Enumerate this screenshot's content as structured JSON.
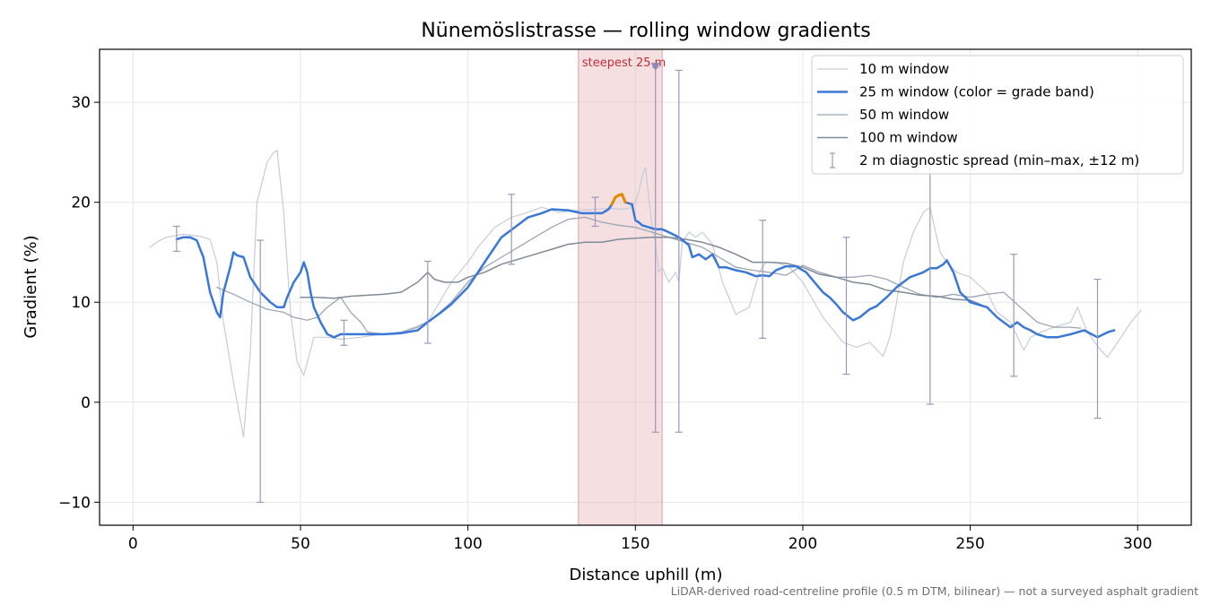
{
  "chart_data": {
    "type": "line",
    "title": "Nünemöslistrasse — rolling window gradients",
    "xlabel": "Distance uphill (m)",
    "ylabel": "Gradient (%)",
    "xlim": [
      -10,
      316
    ],
    "ylim": [
      -12.3,
      35.3
    ],
    "x_ticks": [
      0,
      50,
      100,
      150,
      200,
      250,
      300
    ],
    "y_ticks": [
      -10,
      0,
      10,
      20,
      30
    ],
    "x_tick_labels": [
      "0",
      "50",
      "100",
      "150",
      "200",
      "250",
      "300"
    ],
    "y_tick_labels": [
      "−10",
      "0",
      "10",
      "20",
      "30"
    ],
    "grid": true,
    "legend_position": "top-right",
    "footnote": "LiDAR-derived road-centreline profile (0.5 m DTM, bilinear) — not a surveyed asphalt gradient",
    "highlight": {
      "label": "steepest 25 m",
      "x_start": 133,
      "x_end": 158,
      "color": "#e8b8bd",
      "marker_x": 156,
      "marker_y": 33.5
    },
    "series": [
      {
        "name": "10 m window",
        "color": "#c7ccd6",
        "width": 1.2,
        "x": [
          5,
          7,
          10,
          15,
          20,
          23,
          25,
          27,
          30,
          33,
          35,
          37,
          40,
          42,
          43,
          45,
          47,
          49,
          51,
          54,
          58,
          62,
          68,
          72,
          80,
          88,
          95,
          100,
          103,
          108,
          113,
          118,
          122,
          127,
          133,
          138,
          143,
          146,
          148,
          150,
          151,
          152,
          153,
          154,
          155,
          156,
          157,
          158,
          160,
          162,
          163,
          164,
          166,
          168,
          170,
          173,
          176,
          180,
          184,
          187,
          189,
          192,
          196,
          200,
          206,
          212,
          216,
          220,
          224,
          226,
          228,
          230,
          233,
          236,
          238,
          239,
          241,
          243,
          246,
          250,
          255,
          258,
          262,
          266,
          268,
          271,
          275,
          280,
          282,
          285,
          289,
          291,
          295,
          298,
          301
        ],
        "y": [
          15.5,
          16,
          16.5,
          16.8,
          16.6,
          16.3,
          14,
          8,
          2,
          -3.5,
          5,
          20,
          24,
          25,
          25.2,
          19,
          9,
          4,
          2.7,
          6.5,
          6.5,
          6.3,
          6.5,
          6.7,
          7,
          8,
          12,
          14,
          15.5,
          17.5,
          18.5,
          19,
          19.5,
          19,
          19.2,
          19.3,
          19.4,
          19.3,
          19.4,
          20,
          21,
          22.5,
          23.5,
          20.5,
          17.5,
          16,
          13,
          13.5,
          12,
          13,
          12,
          16,
          17,
          16.5,
          17,
          15.8,
          12,
          8.8,
          9.5,
          13,
          14,
          14,
          13.5,
          12,
          8.5,
          6,
          5.5,
          6,
          4.6,
          6.5,
          10,
          14,
          17,
          19,
          19.5,
          18,
          15,
          14,
          13,
          12.5,
          11,
          9,
          8,
          5.2,
          6.5,
          7,
          7.5,
          8,
          9.5,
          7,
          5.2,
          4.5,
          6.5,
          8,
          9.2
        ]
      },
      {
        "name": "25 m window (color = grade band)",
        "color": "#3a78d8",
        "width": 2.5,
        "x": [
          13,
          15,
          17,
          19,
          21,
          23,
          25,
          26,
          27,
          29,
          30,
          31,
          33,
          35,
          38,
          41,
          43,
          45,
          46,
          48,
          50,
          51,
          52,
          53,
          54,
          56,
          58,
          60,
          62,
          65,
          70,
          75,
          80,
          85,
          88,
          92,
          95,
          100,
          103,
          106,
          110,
          114,
          118,
          122,
          125,
          130,
          134,
          138,
          140,
          142,
          143,
          144,
          145,
          146,
          147,
          148,
          149,
          150,
          151,
          152,
          154,
          156,
          158,
          160,
          163,
          166,
          167,
          169,
          171,
          173,
          175,
          177,
          180,
          183,
          186,
          188,
          190,
          192,
          195,
          198,
          201,
          204,
          206,
          208,
          210,
          212,
          215,
          217,
          220,
          222,
          225,
          228,
          232,
          236,
          238,
          240,
          242,
          243,
          245,
          247,
          250,
          255,
          258,
          260,
          262,
          264,
          266,
          268,
          270,
          273,
          276,
          280,
          284,
          288,
          291,
          293
        ],
        "y": [
          16.3,
          16.5,
          16.5,
          16.2,
          14.5,
          11,
          9,
          8.5,
          11,
          13.5,
          15,
          14.7,
          14.5,
          12.5,
          11,
          10,
          9.5,
          9.5,
          10.5,
          12,
          13,
          14,
          13,
          11,
          9.5,
          8,
          6.8,
          6.5,
          6.8,
          6.8,
          6.8,
          6.8,
          6.9,
          7.2,
          8,
          9,
          9.8,
          11.5,
          13,
          14.5,
          16.5,
          17.5,
          18.5,
          18.9,
          19.3,
          19.2,
          18.9,
          18.9,
          18.9,
          19.3,
          19.8,
          20.5,
          20.7,
          20.8,
          20,
          19.9,
          19.8,
          18.2,
          18,
          17.7,
          17.5,
          17.3,
          17.3,
          17,
          16.5,
          15.7,
          14.5,
          14.8,
          14.3,
          14.8,
          13.5,
          13.5,
          13.2,
          13,
          12.6,
          12.7,
          12.6,
          13.2,
          13.6,
          13.6,
          13,
          11.8,
          11,
          10.5,
          9.8,
          9,
          8.2,
          8.5,
          9.3,
          9.6,
          10.5,
          11.5,
          12.5,
          13,
          13.4,
          13.4,
          13.8,
          14.2,
          13,
          11,
          10,
          9.5,
          8.5,
          8,
          7.5,
          8,
          7.5,
          7.2,
          6.8,
          6.5,
          6.5,
          6.8,
          7.2,
          6.5,
          7,
          7.2
        ]
      },
      {
        "name": "50 m window",
        "color": "#9ca6b4",
        "width": 1.3,
        "x": [
          25,
          30,
          35,
          40,
          45,
          48,
          52,
          55,
          58,
          62,
          65,
          68,
          70,
          75,
          80,
          85,
          90,
          95,
          100,
          105,
          110,
          115,
          120,
          125,
          130,
          135,
          140,
          145,
          150,
          155,
          160,
          165,
          170,
          175,
          180,
          185,
          190,
          195,
          200,
          205,
          210,
          215,
          220,
          225,
          230,
          235,
          240,
          245,
          250,
          255,
          260,
          265,
          270,
          275,
          280,
          283
        ],
        "y": [
          11.5,
          10.8,
          10,
          9.3,
          9,
          8.5,
          8.2,
          8.5,
          9.5,
          10.5,
          9,
          8,
          7,
          6.8,
          7,
          7.5,
          8.5,
          10,
          12,
          13.5,
          14.5,
          15.5,
          16.5,
          17.5,
          18.3,
          18.5,
          18,
          17.7,
          17.5,
          17,
          16.5,
          16,
          15.5,
          14.5,
          13.5,
          13.2,
          13,
          12.7,
          13.7,
          13,
          12.5,
          12.5,
          12.7,
          12.3,
          11.5,
          10.8,
          10.5,
          10.8,
          10.5,
          10.8,
          11,
          9.5,
          8,
          7.5,
          7.5,
          7.4
        ]
      },
      {
        "name": "100 m window",
        "color": "#808a98",
        "width": 1.5,
        "x": [
          50,
          55,
          60,
          65,
          70,
          75,
          80,
          85,
          88,
          90,
          93,
          97,
          100,
          105,
          110,
          115,
          120,
          125,
          130,
          135,
          140,
          145,
          150,
          155,
          160,
          165,
          170,
          175,
          180,
          185,
          190,
          195,
          200,
          205,
          210,
          215,
          220,
          225,
          230,
          235,
          240,
          245,
          250,
          255
        ],
        "y": [
          10.5,
          10.5,
          10.4,
          10.6,
          10.7,
          10.8,
          11,
          12,
          13,
          12.3,
          12,
          12,
          12.5,
          13,
          13.8,
          14.3,
          14.8,
          15.3,
          15.8,
          16,
          16,
          16.3,
          16.4,
          16.5,
          16.5,
          16.3,
          16,
          15.5,
          14.8,
          14,
          14,
          13.9,
          13.5,
          12.8,
          12.5,
          12,
          11.8,
          11.2,
          11,
          10.7,
          10.6,
          10.3,
          10.2,
          9.5
        ]
      }
    ],
    "error_bars": {
      "name": "2 m diagnostic spread (min–max, ±12 m)",
      "color": "#9c98bb",
      "items": [
        {
          "x": 13,
          "y": 16.3,
          "low": 15.1,
          "high": 17.6
        },
        {
          "x": 38,
          "y": 11,
          "low": -10,
          "high": 16.2
        },
        {
          "x": 63,
          "y": 6.8,
          "low": 5.7,
          "high": 8.2
        },
        {
          "x": 88,
          "y": 8,
          "low": 5.9,
          "high": 14.1
        },
        {
          "x": 113,
          "y": 17.5,
          "low": 13.8,
          "high": 20.8
        },
        {
          "x": 138,
          "y": 18.9,
          "low": 17.6,
          "high": 20.5
        },
        {
          "x": 156,
          "y": 17.3,
          "low": -3,
          "high": 33.5
        },
        {
          "x": 163,
          "y": 17,
          "low": -3,
          "high": 33.2
        },
        {
          "x": 188,
          "y": 12.7,
          "low": 6.4,
          "high": 18.2
        },
        {
          "x": 213,
          "y": 9.8,
          "low": 2.8,
          "high": 16.5
        },
        {
          "x": 238,
          "y": 13.4,
          "low": -0.2,
          "high": 24
        },
        {
          "x": 263,
          "y": 7.5,
          "low": 2.6,
          "high": 14.8
        },
        {
          "x": 288,
          "y": 6.5,
          "low": -1.6,
          "high": 12.3
        }
      ]
    },
    "grade_band_highlight": {
      "color": "#e08a00",
      "x": [
        143,
        144,
        145,
        146,
        147
      ],
      "y": [
        19.8,
        20.5,
        20.7,
        20.8,
        20
      ]
    }
  }
}
